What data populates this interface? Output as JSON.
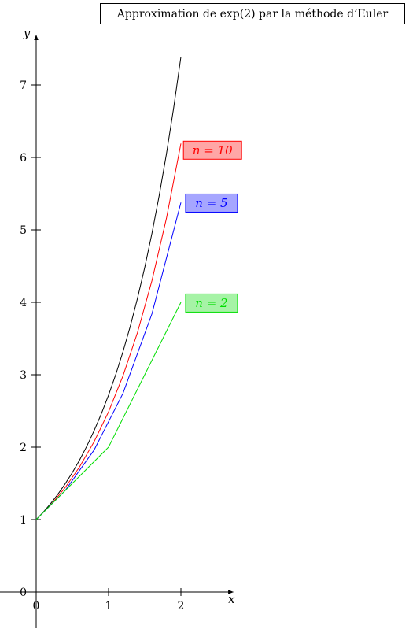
{
  "chart_data": {
    "type": "line",
    "title": "Approximation de exp(2) par la méthode d’Euler",
    "xlabel": "x",
    "ylabel": "y",
    "xlim": [
      -0.5,
      2.7
    ],
    "ylim": [
      -0.5,
      7.6
    ],
    "x_ticks": [
      "0",
      "1",
      "2"
    ],
    "y_ticks": [
      "0",
      "1",
      "2",
      "3",
      "4",
      "5",
      "6",
      "7"
    ],
    "grid": false,
    "colors": {
      "exact": "#000000",
      "n10": "#ff0000",
      "n5": "#0000ff",
      "n2": "#00dd00"
    },
    "series": [
      {
        "key": "exact",
        "name": "",
        "x": [
          0,
          0.1,
          0.2,
          0.3,
          0.4,
          0.5,
          0.6,
          0.7,
          0.8,
          0.9,
          1.0,
          1.1,
          1.2,
          1.3,
          1.4,
          1.5,
          1.6,
          1.7,
          1.8,
          1.9,
          2.0
        ],
        "y": [
          1,
          1.105,
          1.221,
          1.35,
          1.492,
          1.649,
          1.822,
          2.014,
          2.226,
          2.46,
          2.718,
          3.004,
          3.32,
          3.669,
          4.055,
          4.482,
          4.953,
          5.474,
          6.05,
          6.686,
          7.389
        ]
      },
      {
        "key": "n10",
        "name": "n = 10",
        "x": [
          0,
          0.2,
          0.4,
          0.6,
          0.8,
          1.0,
          1.2,
          1.4,
          1.6,
          1.8,
          2.0
        ],
        "y": [
          1,
          1.2,
          1.44,
          1.728,
          2.074,
          2.488,
          2.986,
          3.583,
          4.3,
          5.16,
          6.192
        ]
      },
      {
        "key": "n5",
        "name": "n = 5",
        "x": [
          0,
          0.4,
          0.8,
          1.2,
          1.6,
          2.0
        ],
        "y": [
          1,
          1.4,
          1.96,
          2.744,
          3.842,
          5.378
        ]
      },
      {
        "key": "n2",
        "name": "n = 2",
        "x": [
          0,
          1,
          2
        ],
        "y": [
          1,
          2,
          4
        ]
      }
    ],
    "labels": [
      {
        "series": "n10",
        "text": "n = 10",
        "at": [
          2.1,
          6.1
        ]
      },
      {
        "series": "n5",
        "text": "n = 5",
        "at": [
          2.13,
          5.37
        ]
      },
      {
        "series": "n2",
        "text": "n = 2",
        "at": [
          2.13,
          3.99
        ]
      }
    ]
  }
}
